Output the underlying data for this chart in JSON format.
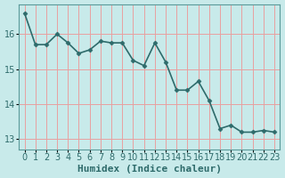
{
  "x": [
    0,
    1,
    2,
    3,
    4,
    5,
    6,
    7,
    8,
    9,
    10,
    11,
    12,
    13,
    14,
    15,
    16,
    17,
    18,
    19,
    20,
    21,
    22,
    23
  ],
  "y": [
    16.6,
    15.7,
    15.7,
    16.0,
    15.75,
    15.45,
    15.55,
    15.8,
    15.75,
    15.75,
    15.25,
    15.1,
    15.75,
    15.2,
    14.4,
    14.4,
    14.65,
    14.1,
    13.3,
    13.4,
    13.2,
    13.2,
    13.25,
    13.2
  ],
  "line_color": "#2e6b6b",
  "marker": "D",
  "markersize": 2.5,
  "linewidth": 1.2,
  "bg_color": "#c8eaea",
  "grid_color": "#e8a0a0",
  "xlabel": "Humidex (Indice chaleur)",
  "xlabel_fontsize": 8,
  "tick_fontsize": 7,
  "ylim": [
    12.7,
    16.85
  ],
  "xlim": [
    -0.5,
    23.5
  ],
  "yticks": [
    13,
    14,
    15,
    16
  ],
  "xticks": [
    0,
    1,
    2,
    3,
    4,
    5,
    6,
    7,
    8,
    9,
    10,
    11,
    12,
    13,
    14,
    15,
    16,
    17,
    18,
    19,
    20,
    21,
    22,
    23
  ],
  "spine_color": "#5a9a9a",
  "title": ""
}
